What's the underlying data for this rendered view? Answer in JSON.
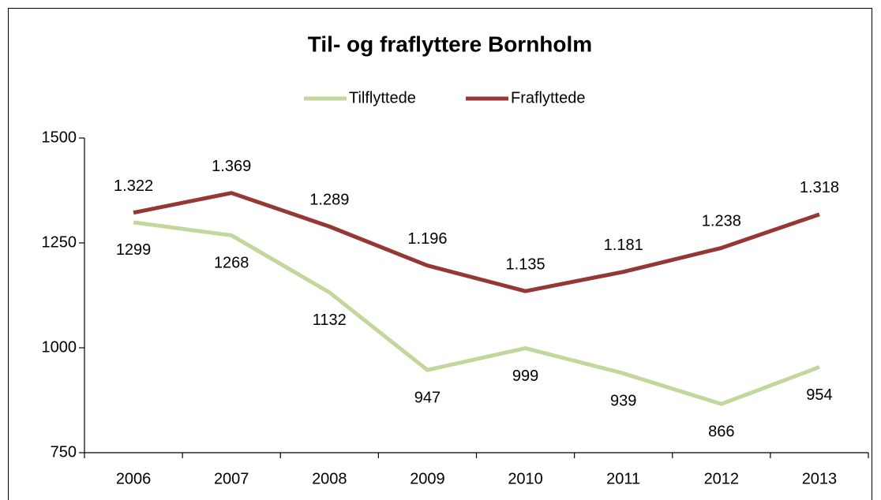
{
  "chart_data": {
    "type": "line",
    "title": "Til- og fraflyttere Bornholm",
    "categories": [
      "2006",
      "2007",
      "2008",
      "2009",
      "2010",
      "2011",
      "2012",
      "2013"
    ],
    "series": [
      {
        "name": "Tilflyttede",
        "color": "#c3d69b",
        "values": [
          1299,
          1268,
          1132,
          947,
          999,
          939,
          866,
          954
        ]
      },
      {
        "name": "Fraflyttede",
        "color": "#953735",
        "values": [
          1322,
          1369,
          1289,
          1196,
          1135,
          1181,
          1238,
          1318
        ],
        "value_labels": [
          "1.322",
          "1.369",
          "1.289",
          "1.196",
          "1.135",
          "1.181",
          "1.238",
          "1.318"
        ]
      }
    ],
    "ylim": [
      750,
      1500
    ],
    "yticks": [
      750,
      1000,
      1250,
      1500
    ],
    "grid": false,
    "legend": "top"
  }
}
